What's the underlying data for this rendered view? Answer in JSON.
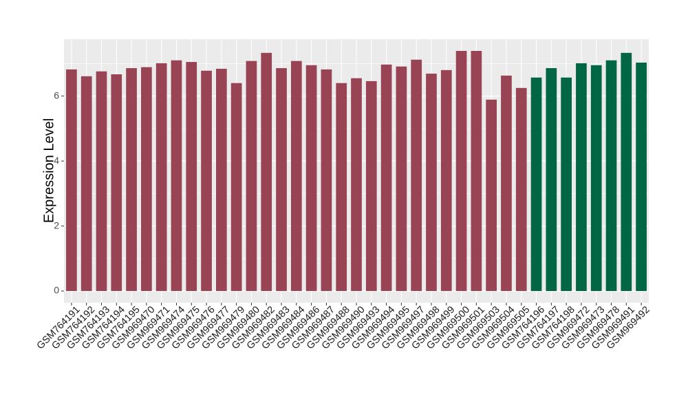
{
  "chart_data": {
    "type": "bar",
    "y_label": "Expression Level",
    "categories": [
      "GSM764191",
      "GSM764192",
      "GSM764193",
      "GSM764194",
      "GSM764195",
      "GSM969470",
      "GSM969471",
      "GSM969474",
      "GSM969475",
      "GSM969476",
      "GSM969477",
      "GSM969479",
      "GSM969480",
      "GSM969482",
      "GSM969483",
      "GSM969484",
      "GSM969486",
      "GSM969487",
      "GSM969488",
      "GSM969490",
      "GSM969493",
      "GSM969494",
      "GSM969495",
      "GSM969497",
      "GSM969498",
      "GSM969499",
      "GSM969500",
      "GSM969501",
      "GSM969503",
      "GSM969504",
      "GSM969505",
      "GSM764196",
      "GSM764197",
      "GSM764198",
      "GSM969472",
      "GSM969473",
      "GSM969478",
      "GSM969491",
      "GSM969492"
    ],
    "values": [
      6.82,
      6.61,
      6.76,
      6.67,
      6.86,
      6.89,
      7.01,
      7.1,
      7.05,
      6.78,
      6.84,
      6.4,
      7.08,
      7.33,
      6.86,
      7.08,
      6.95,
      6.82,
      6.4,
      6.55,
      6.46,
      6.97,
      6.91,
      7.12,
      6.69,
      6.8,
      7.39,
      7.39,
      5.89,
      6.63,
      6.25,
      6.57,
      6.86,
      6.57,
      7.01,
      6.95,
      7.1,
      7.33,
      7.03
    ],
    "colors": [
      "#994455",
      "#994455",
      "#994455",
      "#994455",
      "#994455",
      "#994455",
      "#994455",
      "#994455",
      "#994455",
      "#994455",
      "#994455",
      "#994455",
      "#994455",
      "#994455",
      "#994455",
      "#994455",
      "#994455",
      "#994455",
      "#994455",
      "#994455",
      "#994455",
      "#994455",
      "#994455",
      "#994455",
      "#994455",
      "#994455",
      "#994455",
      "#994455",
      "#994455",
      "#994455",
      "#994455",
      "#006644",
      "#006644",
      "#006644",
      "#006644",
      "#006644",
      "#006644",
      "#006644",
      "#006644"
    ],
    "ylim": [
      -0.36,
      7.75
    ],
    "yticks": [
      0,
      2,
      4,
      6
    ],
    "grid": true,
    "panel_color": "#ebebeb"
  }
}
